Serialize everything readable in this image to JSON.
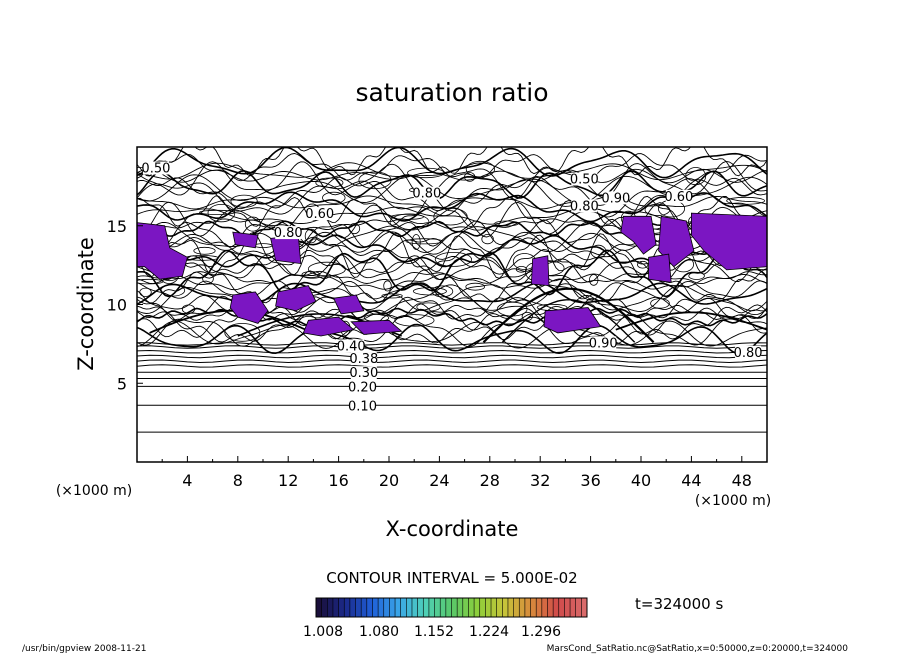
{
  "chart_data": {
    "type": "contour",
    "title": "saturation ratio",
    "xlabel": "X-coordinate",
    "ylabel": "Z-coordinate",
    "x_unit": "(×1000 m)",
    "z_unit": "(×1000 m)",
    "xlim": [
      0,
      50
    ],
    "ylim": [
      0,
      20
    ],
    "x_ticks": [
      4,
      8,
      12,
      16,
      20,
      24,
      28,
      32,
      36,
      40,
      44,
      48
    ],
    "y_ticks": [
      5,
      10,
      15
    ],
    "contour_interval_text": "CONTOUR INTERVAL = 5.000E-02",
    "contour_labels": [
      {
        "text": "0.10",
        "x": 17.9,
        "z": 3.6
      },
      {
        "text": "0.20",
        "x": 17.9,
        "z": 4.8
      },
      {
        "text": "0.30",
        "x": 18.0,
        "z": 5.7
      },
      {
        "text": "0.38",
        "x": 18.0,
        "z": 6.6
      },
      {
        "text": "0.40",
        "x": 17.0,
        "z": 7.4
      },
      {
        "text": "0.50",
        "x": 1.5,
        "z": 18.7
      },
      {
        "text": "0.50",
        "x": 35.5,
        "z": 18.0
      },
      {
        "text": "0.60",
        "x": 14.5,
        "z": 15.8
      },
      {
        "text": "0.60",
        "x": 43.0,
        "z": 16.9
      },
      {
        "text": "0.80",
        "x": 12.0,
        "z": 14.6
      },
      {
        "text": "0.80",
        "x": 35.5,
        "z": 16.3
      },
      {
        "text": "0.90",
        "x": 38.0,
        "z": 16.8
      },
      {
        "text": "0.90",
        "x": 37.0,
        "z": 7.6
      },
      {
        "text": "0.80",
        "x": 23.0,
        "z": 17.1
      },
      {
        "text": "0.80",
        "x": 48.5,
        "z": 7.0
      }
    ],
    "shaded_threshold": 1.0,
    "shaded_color": "#7b16c2",
    "shaded_regions_x_range": [
      [
        0,
        4
      ],
      [
        7,
        13
      ],
      [
        13,
        21
      ],
      [
        31,
        37
      ],
      [
        39,
        50
      ]
    ],
    "colorbar": {
      "tick_labels": [
        "1.008",
        "1.080",
        "1.152",
        "1.224",
        "1.296"
      ],
      "min": 1.008,
      "max": 1.32,
      "colors": [
        "#1a0f3a",
        "#1b2a8c",
        "#1f5fd8",
        "#3aa6e8",
        "#4fd0b8",
        "#58c86a",
        "#8ecf3a",
        "#c7c43a",
        "#d88a3c",
        "#d04a4a",
        "#d96a6a"
      ]
    },
    "time_text": "t=324000 s",
    "grid": false,
    "legend": "colorbar-bottom"
  },
  "footer": {
    "left": "/usr/bin/gpview  2008-11-21",
    "right": "MarsCond_SatRatio.nc@SatRatio,x=0:50000,z=0:20000,t=324000"
  }
}
